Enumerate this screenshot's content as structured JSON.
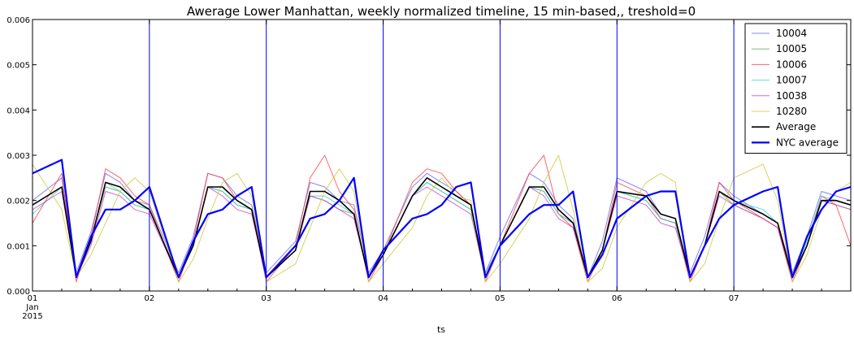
{
  "chart_data": {
    "type": "line",
    "title": "Awerage Lower Manhattan, weekly normalized timeline, 15 min-based,, treshold=0",
    "xlabel": "ts",
    "ylabel": "",
    "ylim": [
      0,
      0.006
    ],
    "xlim": [
      "2015-01-01 00:00",
      "2015-01-08 00:00"
    ],
    "grid": false,
    "legend_position": "top-right",
    "y_ticks": [
      "0.000",
      "0.001",
      "0.002",
      "0.003",
      "0.004",
      "0.005",
      "0.006"
    ],
    "x_ticks": [
      {
        "x": "2015-01-01",
        "label": "01"
      },
      {
        "x": "2015-01-02",
        "label": "02"
      },
      {
        "x": "2015-01-03",
        "label": "03"
      },
      {
        "x": "2015-01-04",
        "label": "04"
      },
      {
        "x": "2015-01-05",
        "label": "05"
      },
      {
        "x": "2015-01-06",
        "label": "06"
      },
      {
        "x": "2015-01-07",
        "label": "07"
      }
    ],
    "x_tick_sublabels": [
      "Jan",
      "2015"
    ],
    "vlines": [
      "2015-01-02",
      "2015-01-03",
      "2015-01-04",
      "2015-01-05",
      "2015-01-06",
      "2015-01-07"
    ],
    "vline_color": "#0000ff",
    "x_hours": [
      0,
      6,
      9,
      12,
      15,
      18,
      21,
      24,
      30,
      33,
      36,
      39,
      42,
      45,
      48,
      54,
      57,
      60,
      63,
      66,
      69,
      72,
      78,
      81,
      84,
      87,
      90,
      93,
      96,
      102,
      105,
      108,
      111,
      114,
      117,
      120,
      126,
      129,
      132,
      135,
      138,
      141,
      144,
      150,
      153,
      156,
      159,
      162,
      165,
      168
    ],
    "series": [
      {
        "name": "10004",
        "color": "#5b5bff",
        "width": 1,
        "opacity": 0.75,
        "values": [
          0.002,
          0.0025,
          0.0004,
          0.0013,
          0.0026,
          0.0024,
          0.002,
          0.0019,
          0.0004,
          0.0012,
          0.0026,
          0.0025,
          0.0021,
          0.0019,
          0.0004,
          0.0011,
          0.0024,
          0.0023,
          0.002,
          0.0019,
          0.0004,
          0.0009,
          0.0023,
          0.0026,
          0.0024,
          0.0022,
          0.0019,
          0.0004,
          0.0012,
          0.0026,
          0.0024,
          0.0019,
          0.0016,
          0.0003,
          0.0011,
          0.0025,
          0.0022,
          0.0017,
          0.0016,
          0.0004,
          0.0012,
          0.0024,
          0.0021,
          0.0017,
          0.0015,
          0.0004,
          0.0012,
          0.0022,
          0.0021,
          0.002
        ]
      },
      {
        "name": "10005",
        "color": "#44aa44",
        "width": 1,
        "opacity": 0.75,
        "values": [
          0.0019,
          0.0023,
          0.0003,
          0.0011,
          0.0023,
          0.0022,
          0.0019,
          0.0018,
          0.0003,
          0.001,
          0.0023,
          0.0022,
          0.0019,
          0.0018,
          0.0003,
          0.0009,
          0.0021,
          0.002,
          0.0018,
          0.0017,
          0.0003,
          0.0008,
          0.0021,
          0.0024,
          0.0022,
          0.002,
          0.0018,
          0.0004,
          0.001,
          0.0023,
          0.0022,
          0.0017,
          0.0015,
          0.0003,
          0.0009,
          0.0022,
          0.002,
          0.0016,
          0.0015,
          0.0003,
          0.001,
          0.0022,
          0.0019,
          0.0016,
          0.0014,
          0.0003,
          0.001,
          0.002,
          0.0019,
          0.0018
        ]
      },
      {
        "name": "10006",
        "color": "#ff3333",
        "width": 1,
        "opacity": 0.75,
        "values": [
          0.0015,
          0.0026,
          0.0002,
          0.0012,
          0.0027,
          0.0025,
          0.0021,
          0.0019,
          0.0002,
          0.0011,
          0.0026,
          0.0025,
          0.002,
          0.0018,
          0.0002,
          0.001,
          0.0025,
          0.003,
          0.0022,
          0.0018,
          0.0002,
          0.0008,
          0.0024,
          0.0027,
          0.0026,
          0.0022,
          0.0019,
          0.0002,
          0.001,
          0.0026,
          0.003,
          0.0017,
          0.0014,
          0.0002,
          0.0009,
          0.0024,
          0.0021,
          0.0016,
          0.0015,
          0.0002,
          0.001,
          0.0024,
          0.002,
          0.0016,
          0.0014,
          0.0002,
          0.001,
          0.0021,
          0.0019,
          0.001
        ]
      },
      {
        "name": "10007",
        "color": "#33cccc",
        "width": 1,
        "opacity": 0.75,
        "values": [
          0.0017,
          0.0023,
          0.0003,
          0.0011,
          0.0024,
          0.0022,
          0.0019,
          0.0018,
          0.0003,
          0.001,
          0.0023,
          0.0022,
          0.0019,
          0.0018,
          0.0003,
          0.0009,
          0.0021,
          0.0021,
          0.0019,
          0.0017,
          0.0003,
          0.0008,
          0.0021,
          0.0024,
          0.0022,
          0.002,
          0.0018,
          0.0003,
          0.001,
          0.0023,
          0.0022,
          0.0017,
          0.0015,
          0.0003,
          0.0009,
          0.0022,
          0.002,
          0.0016,
          0.0015,
          0.0003,
          0.001,
          0.0022,
          0.002,
          0.0018,
          0.0015,
          0.0003,
          0.0011,
          0.0021,
          0.002,
          0.0019
        ]
      },
      {
        "name": "10038",
        "color": "#cc33cc",
        "width": 1,
        "opacity": 0.75,
        "values": [
          0.0018,
          0.0022,
          0.0003,
          0.001,
          0.0022,
          0.0021,
          0.0018,
          0.0017,
          0.0003,
          0.001,
          0.0023,
          0.0021,
          0.0018,
          0.0017,
          0.0003,
          0.0009,
          0.0021,
          0.002,
          0.0018,
          0.0016,
          0.0003,
          0.0008,
          0.0021,
          0.0023,
          0.0021,
          0.0019,
          0.0017,
          0.0003,
          0.001,
          0.0023,
          0.0021,
          0.0016,
          0.0014,
          0.0003,
          0.0009,
          0.0021,
          0.0019,
          0.0015,
          0.0014,
          0.0003,
          0.001,
          0.0021,
          0.0019,
          0.0016,
          0.0014,
          0.0003,
          0.001,
          0.002,
          0.0019,
          0.0018
        ]
      },
      {
        "name": "10280",
        "color": "#cccc44",
        "width": 1,
        "opacity": 0.85,
        "values": [
          0.0028,
          0.0018,
          0.0003,
          0.0008,
          0.0015,
          0.0022,
          0.0025,
          0.0022,
          0.0002,
          0.0007,
          0.0016,
          0.0024,
          0.0026,
          0.0021,
          0.0002,
          0.0006,
          0.0014,
          0.0022,
          0.0027,
          0.0022,
          0.0002,
          0.0006,
          0.0014,
          0.0021,
          0.0025,
          0.0021,
          0.002,
          0.0002,
          0.0006,
          0.0016,
          0.0024,
          0.003,
          0.0018,
          0.0002,
          0.0005,
          0.0014,
          0.0024,
          0.0026,
          0.0024,
          0.0002,
          0.0006,
          0.0016,
          0.0025,
          0.0028,
          0.002,
          0.0002,
          0.0008,
          0.0018,
          0.0022,
          0.0024
        ]
      },
      {
        "name": "Average",
        "color": "#000000",
        "width": 1.6,
        "opacity": 1,
        "values": [
          0.0019,
          0.0023,
          0.0003,
          0.0011,
          0.0024,
          0.0023,
          0.002,
          0.0018,
          0.0003,
          0.001,
          0.0023,
          0.0023,
          0.002,
          0.0018,
          0.0003,
          0.0009,
          0.0022,
          0.0022,
          0.002,
          0.0017,
          0.0003,
          0.0008,
          0.0021,
          0.0025,
          0.0023,
          0.0021,
          0.0019,
          0.0003,
          0.001,
          0.0023,
          0.0023,
          0.0018,
          0.0015,
          0.0003,
          0.0009,
          0.0022,
          0.0021,
          0.0017,
          0.0016,
          0.0003,
          0.001,
          0.0022,
          0.002,
          0.0017,
          0.0015,
          0.0003,
          0.001,
          0.002,
          0.002,
          0.0019
        ]
      },
      {
        "name": "NYC average",
        "color": "#0000ff",
        "width": 2.2,
        "opacity": 1,
        "values": [
          0.0026,
          0.0029,
          0.0003,
          0.0012,
          0.0018,
          0.0018,
          0.002,
          0.0023,
          0.0003,
          0.0011,
          0.0017,
          0.0018,
          0.0021,
          0.0023,
          0.0003,
          0.001,
          0.0016,
          0.0017,
          0.002,
          0.0025,
          0.0003,
          0.0009,
          0.0016,
          0.0017,
          0.0019,
          0.0023,
          0.0024,
          0.0003,
          0.001,
          0.0017,
          0.0019,
          0.0019,
          0.0022,
          0.0003,
          0.0008,
          0.0016,
          0.0021,
          0.0022,
          0.0022,
          0.0003,
          0.001,
          0.0016,
          0.0019,
          0.0022,
          0.0023,
          0.0003,
          0.0012,
          0.0018,
          0.0022,
          0.0023
        ]
      }
    ]
  }
}
